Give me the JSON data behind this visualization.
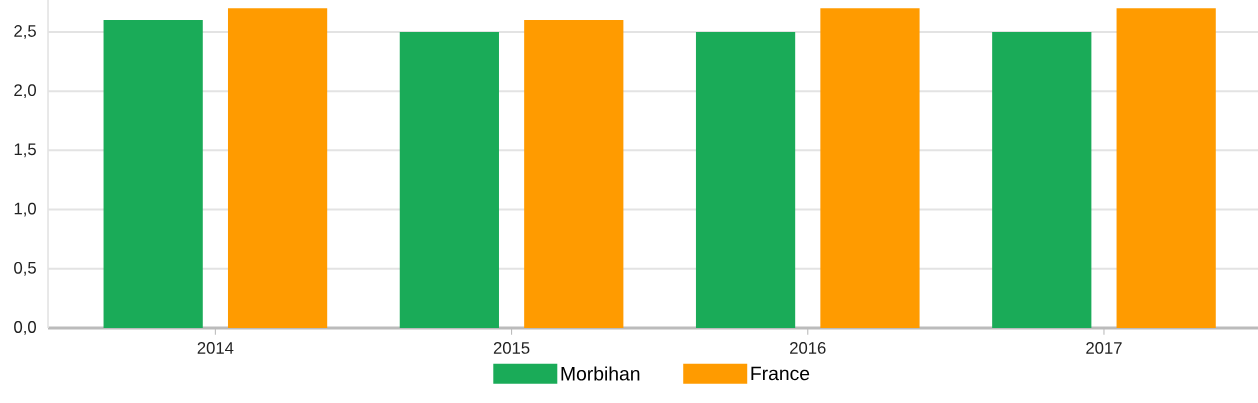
{
  "chart_data": {
    "type": "bar",
    "categories": [
      "2014",
      "2015",
      "2016",
      "2017"
    ],
    "series": [
      {
        "name": "Morbihan",
        "color": "#1aab58",
        "values": [
          2.6,
          2.5,
          2.5,
          2.5
        ]
      },
      {
        "name": "France",
        "color": "#ff9b00",
        "values": [
          2.7,
          2.6,
          2.7,
          2.7
        ]
      }
    ],
    "ylim": [
      0,
      2.77
    ],
    "yticks": [
      {
        "value": 0,
        "label": "0,0"
      },
      {
        "value": 0.5,
        "label": "0,5"
      },
      {
        "value": 1,
        "label": "1,0"
      },
      {
        "value": 1.5,
        "label": "1,5"
      },
      {
        "value": 2,
        "label": "2,0"
      },
      {
        "value": 2.5,
        "label": "2,5"
      }
    ],
    "grid": "y",
    "legend": "bottom"
  }
}
